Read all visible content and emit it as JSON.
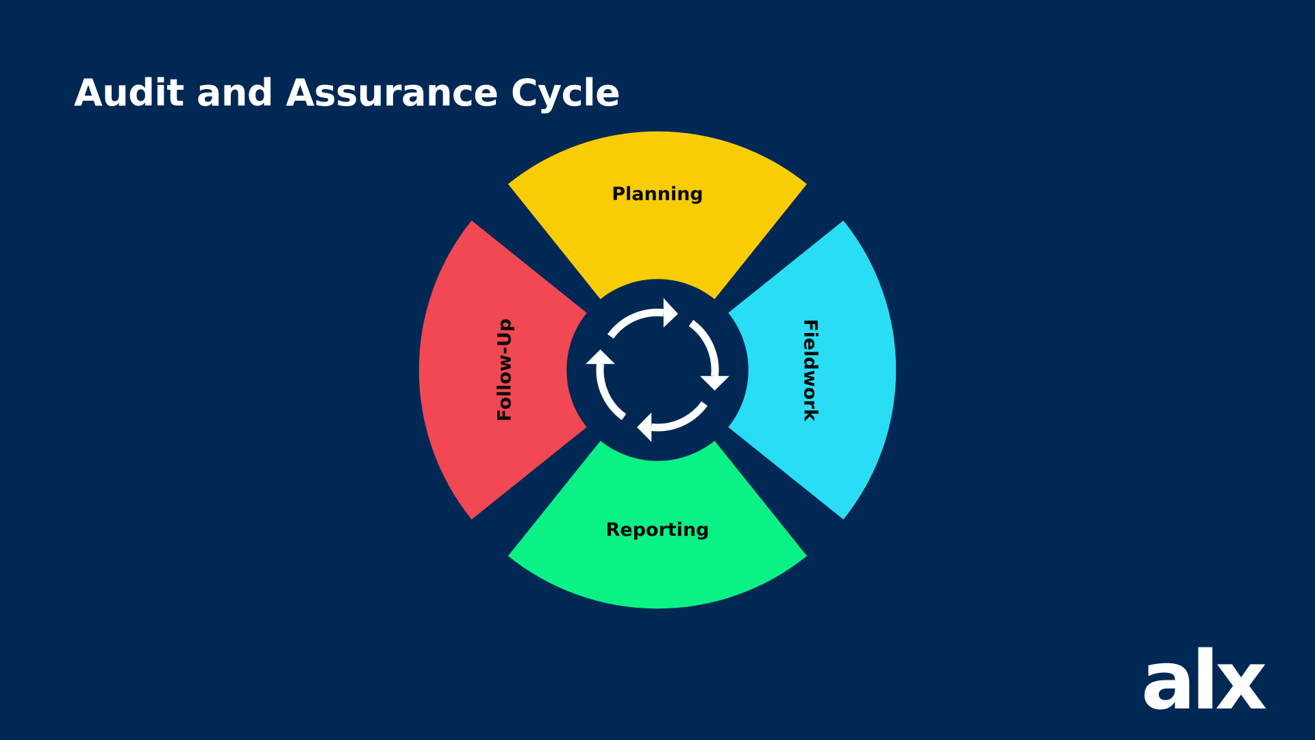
{
  "title": "Audit and Assurance Cycle",
  "stages": [
    {
      "key": "planning",
      "label": "Planning",
      "color": "#F9CD05"
    },
    {
      "key": "fieldwork",
      "label": "Fieldwork",
      "color": "#29DEF4"
    },
    {
      "key": "reporting",
      "label": "Reporting",
      "color": "#0AF186"
    },
    {
      "key": "follow_up",
      "label": "Follow-Up",
      "color": "#F24854"
    }
  ],
  "colors": {
    "background": "#002855",
    "title": "#FFFFFF",
    "arrows": "#FFFFFF",
    "logo": "#FFFFFF"
  },
  "logo": {
    "text": "alx"
  },
  "icons": {
    "center": "cycle-arrows-icon"
  }
}
